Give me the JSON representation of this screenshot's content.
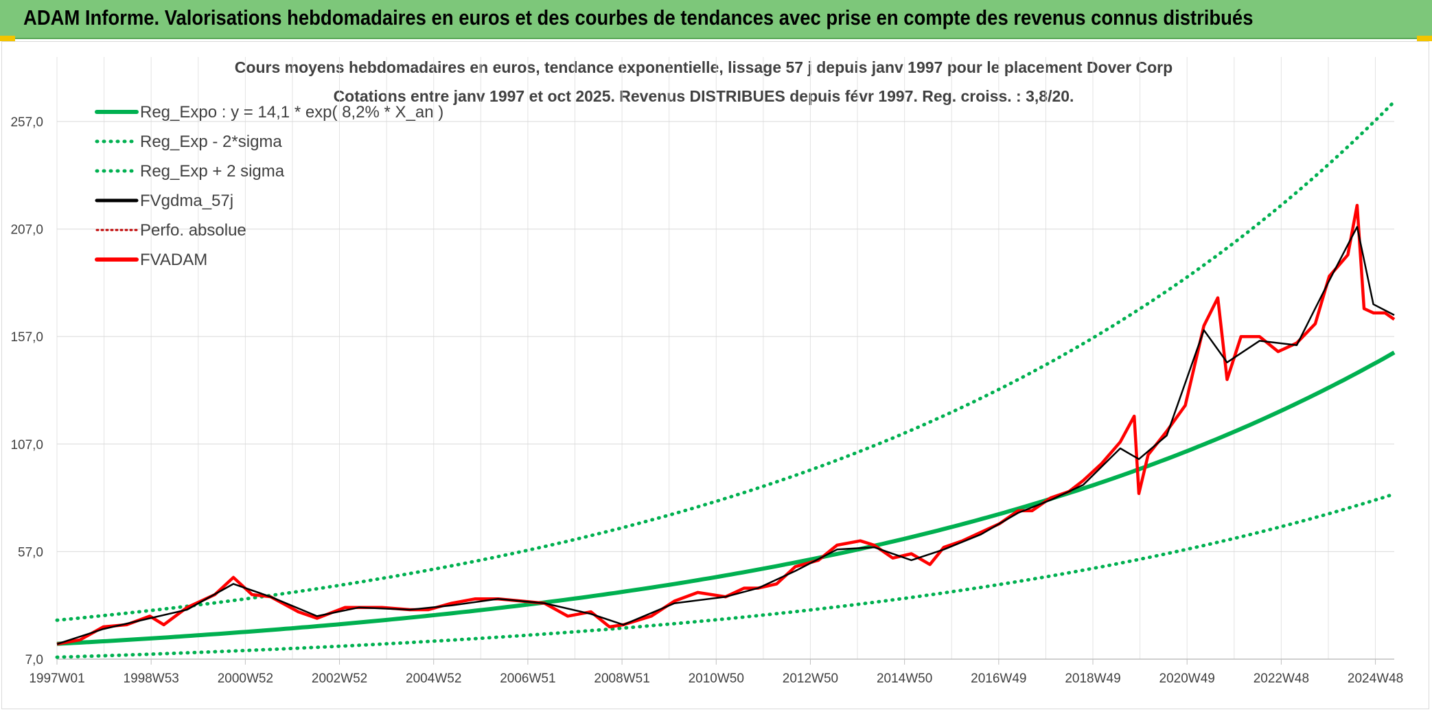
{
  "header": {
    "title": "ADAM Informe. Valorisations hebdomadaires en euros et des courbes de tendances avec prise en compte des revenus connus distribués"
  },
  "colors": {
    "banner": "#7dc77a",
    "trend": "#00b050",
    "fvgdma": "#000000",
    "fvadam": "#ff0000",
    "perfo": "#c00000"
  },
  "chart_data": {
    "type": "line",
    "title": "Cours moyens hebdomadaires en euros, tendance exponentielle, lissage 57 j depuis janv 1997 pour le placement Dover Corp",
    "subtitle": "Cotations entre janv 1997 et oct 2025. Revenus DISTRIBUES depuis févr 1997. Reg. croiss. : 3,8/20.",
    "x_tick_labels": [
      "1997W01",
      "1998W53",
      "2000W52",
      "2002W52",
      "2004W52",
      "2006W51",
      "2008W51",
      "2010W50",
      "2012W50",
      "2014W50",
      "2016W49",
      "2018W49",
      "2020W49",
      "2022W48",
      "2024W48"
    ],
    "y_tick_labels": [
      "7,0",
      "57,0",
      "107,0",
      "157,0",
      "207,0",
      "257,0"
    ],
    "ylim": [
      7,
      287
    ],
    "xlim": [
      1997.0,
      2025.8
    ],
    "grid": true,
    "legend_position": "top-left",
    "legend": [
      {
        "label": "Reg_Expo : y = 14,1 * exp( 8,2% *  X_an )",
        "style": "solid-green"
      },
      {
        "label": "Reg_Exp - 2*sigma",
        "style": "dotted-green"
      },
      {
        "label": "Reg_Exp + 2 sigma",
        "style": "dotted-green"
      },
      {
        "label": "FVgdma_57j",
        "style": "solid-black"
      },
      {
        "label": "Perfo. absolue",
        "style": "dotted-red"
      },
      {
        "label": "FVADAM",
        "style": "solid-red"
      }
    ],
    "trend_model": {
      "a": 14.1,
      "rate": 0.082,
      "x0": 1997.0,
      "lower_factor": 0.56,
      "upper_factor": 1.78
    },
    "series": [
      {
        "name": "FVADAM",
        "x": [
          1997.0,
          1997.5,
          1998.0,
          1998.5,
          1999.0,
          1999.3,
          1999.8,
          2000.4,
          2000.8,
          2001.2,
          2001.6,
          2002.2,
          2002.6,
          2003.2,
          2003.5,
          2004.0,
          2004.6,
          2005.0,
          2005.5,
          2006.0,
          2006.5,
          2007.0,
          2007.5,
          2008.0,
          2008.5,
          2008.9,
          2009.2,
          2009.8,
          2010.3,
          2010.8,
          2011.4,
          2011.8,
          2012.1,
          2012.5,
          2012.9,
          2013.4,
          2013.8,
          2014.3,
          2014.6,
          2015.0,
          2015.4,
          2015.8,
          2016.1,
          2016.5,
          2016.9,
          2017.3,
          2017.7,
          2018.0,
          2018.4,
          2018.8,
          2019.1,
          2019.5,
          2019.9,
          2020.2,
          2020.3,
          2020.5,
          2020.9,
          2021.3,
          2021.7,
          2022.0,
          2022.2,
          2022.5,
          2022.9,
          2023.3,
          2023.7,
          2024.1,
          2024.4,
          2024.8,
          2025.0,
          2025.15,
          2025.35,
          2025.6,
          2025.8
        ],
        "values": [
          14,
          16,
          22,
          23,
          27,
          23,
          31,
          37,
          45,
          37,
          36,
          29,
          26,
          31,
          31,
          31,
          30,
          30,
          33,
          35,
          35,
          34,
          33,
          27,
          29,
          22,
          23,
          27,
          34,
          38,
          36,
          40,
          40,
          42,
          50,
          53,
          60,
          62,
          60,
          54,
          56,
          51,
          59,
          62,
          66,
          70,
          76,
          76,
          82,
          85,
          90,
          98,
          108,
          120,
          84,
          102,
          113,
          125,
          162,
          175,
          137,
          157,
          157,
          150,
          154,
          163,
          185,
          195,
          218,
          170,
          168,
          168,
          165
        ]
      },
      {
        "name": "FVgdma_57j",
        "x": [
          1997.0,
          1998.0,
          1999.0,
          1999.8,
          2000.8,
          2001.6,
          2002.6,
          2003.5,
          2004.6,
          2005.5,
          2006.5,
          2007.5,
          2008.5,
          2009.2,
          2010.3,
          2011.4,
          2012.1,
          2012.9,
          2013.8,
          2014.6,
          2015.4,
          2016.1,
          2016.9,
          2017.7,
          2018.4,
          2019.1,
          2019.9,
          2020.3,
          2020.9,
          2021.7,
          2022.2,
          2022.9,
          2023.7,
          2024.4,
          2025.0,
          2025.35,
          2025.8
        ],
        "values": [
          14,
          21,
          26,
          30,
          42,
          36,
          27,
          31,
          30,
          32,
          35,
          33,
          28,
          23,
          33,
          36,
          40,
          48,
          58,
          59,
          53,
          58,
          65,
          75,
          81,
          88,
          105,
          100,
          111,
          160,
          145,
          155,
          153,
          183,
          208,
          172,
          167
        ]
      }
    ]
  }
}
